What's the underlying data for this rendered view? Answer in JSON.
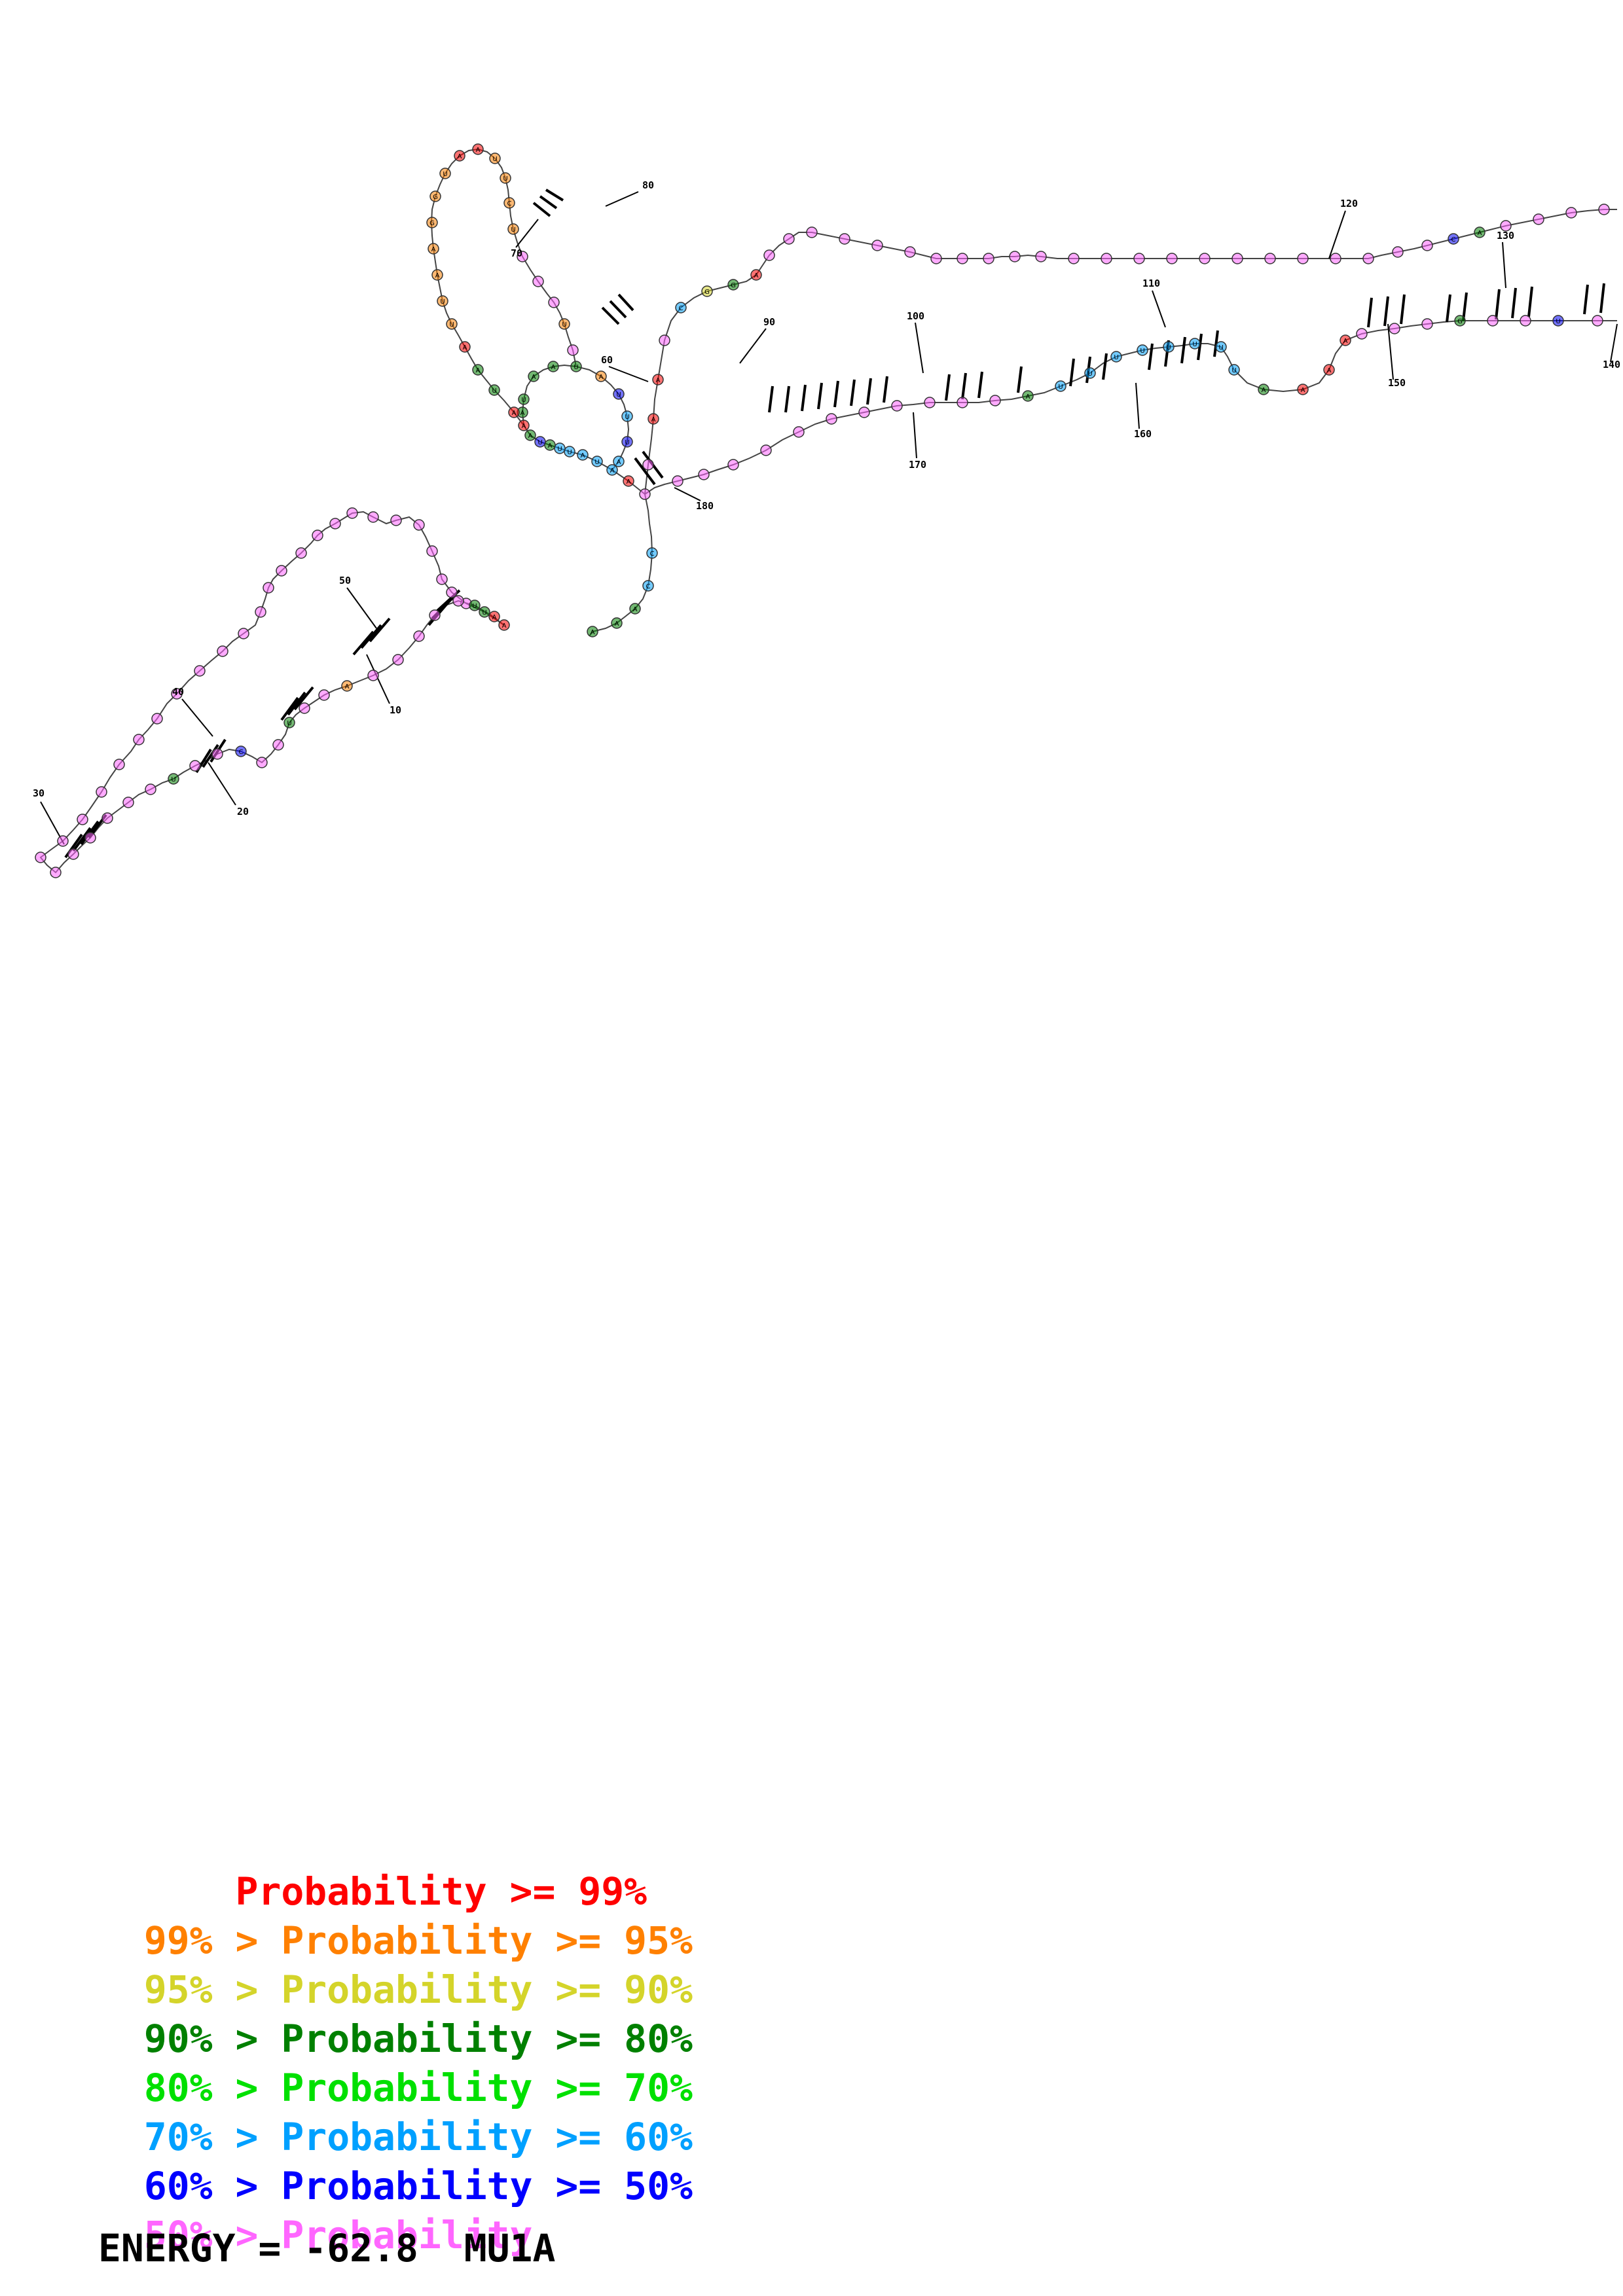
{
  "structure": {
    "position_labels": [
      "10",
      "20",
      "30",
      "40",
      "50",
      "60",
      "70",
      "80",
      "90",
      "100",
      "110",
      "120",
      "130",
      "140",
      "150",
      "160",
      "170",
      "180"
    ]
  },
  "legend": [
    {
      "prefix": "    ",
      "text": "Probability >= 99%",
      "color": "#ff0000"
    },
    {
      "prefix": "99% > ",
      "text": "Probability >= 95%",
      "color": "#ff8000"
    },
    {
      "prefix": "95% > ",
      "text": "Probability >= 90%",
      "color": "#d4d42a"
    },
    {
      "prefix": "90% > ",
      "text": "Probability >= 80%",
      "color": "#008000"
    },
    {
      "prefix": "80% > ",
      "text": "Probability >= 70%",
      "color": "#00e000"
    },
    {
      "prefix": "70% > ",
      "text": "Probability >= 60%",
      "color": "#00a0ff"
    },
    {
      "prefix": "60% > ",
      "text": "Probability >= 50%",
      "color": "#0000ff"
    },
    {
      "prefix": "50% > ",
      "text": "Probability",
      "color": "#ff66ff"
    }
  ],
  "footer": {
    "energy_label": "ENERGY = -62.8  MU1A"
  },
  "colors": {
    "p99": "#ff0000",
    "p95": "#ff8000",
    "p90": "#d4d42a",
    "p80": "#008000",
    "p70": "#00e000",
    "p60": "#00a0ff",
    "p50": "#0000ff",
    "plow": "#ff66ff"
  }
}
